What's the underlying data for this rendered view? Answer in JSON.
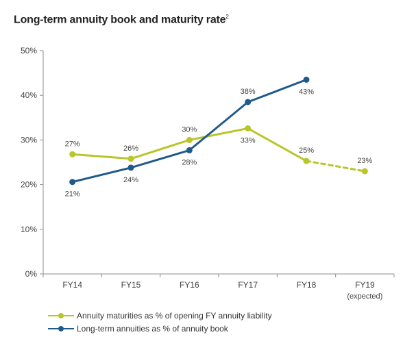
{
  "title": "Long-term annuity book and maturity rate",
  "title_footnote": "2",
  "colors": {
    "series_maturities": "#b8c62a",
    "series_longterm": "#1f5a8c",
    "axis": "#8c8c8c"
  },
  "chart_data": {
    "type": "line",
    "categories": [
      "FY14",
      "FY15",
      "FY16",
      "FY17",
      "FY18",
      "FY19"
    ],
    "category_sublabels": [
      "",
      "",
      "",
      "",
      "",
      "(expected)"
    ],
    "ylim": [
      0,
      50
    ],
    "yticks": [
      "0%",
      "10%",
      "20%",
      "30%",
      "40%",
      "50%"
    ],
    "series": [
      {
        "name": "Annuity maturities as % of opening FY annuity liability",
        "values": [
          26.8,
          25.8,
          30.0,
          32.6,
          25.3,
          23.0
        ],
        "labels": [
          "27%",
          "26%",
          "30%",
          "33%",
          "25%",
          "23%"
        ],
        "dashed_from_index": 4
      },
      {
        "name": "Long-term annuities as % of annuity book",
        "values": [
          20.6,
          23.8,
          27.7,
          38.5,
          43.5,
          null
        ],
        "labels": [
          "21%",
          "24%",
          "28%",
          "38%",
          "43%",
          null
        ]
      }
    ]
  }
}
